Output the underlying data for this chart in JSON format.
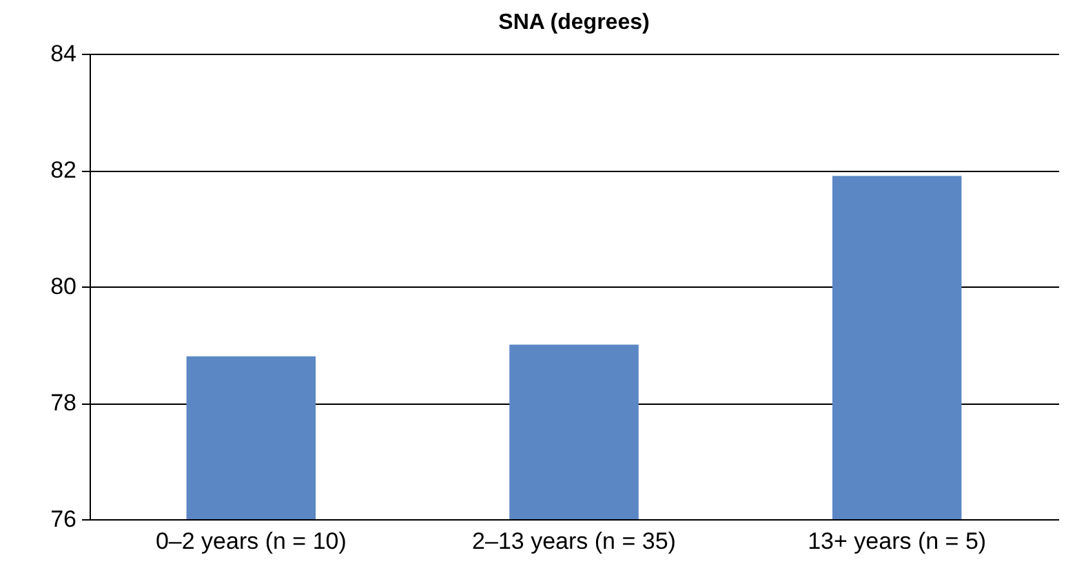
{
  "chart_data": {
    "type": "bar",
    "title": "SNA (degrees)",
    "categories": [
      "0–2 years (n = 10)",
      "2–13 years (n = 35)",
      "13+ years (n = 5)"
    ],
    "values": [
      78.8,
      79.0,
      81.9
    ],
    "color": "#5b87c5",
    "ylim": [
      76,
      84
    ],
    "yticks": [
      76,
      78,
      80,
      82,
      84
    ],
    "grid": "y"
  }
}
